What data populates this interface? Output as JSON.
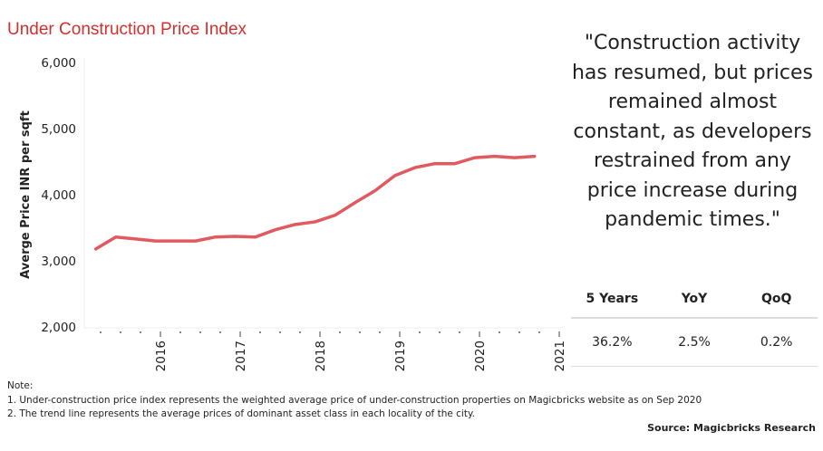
{
  "title": "Under Construction Price Index",
  "quote": "\"Construction activity has resumed, but prices remained almost constant, as developers restrained from any price increase during pandemic times.\"",
  "stats": {
    "headers": [
      "5 Years",
      "YoY",
      "QoQ"
    ],
    "values": [
      "36.2%",
      "2.5%",
      "0.2%"
    ]
  },
  "notes": {
    "heading": "Note:",
    "items": [
      "1. Under-construction price index represents the weighted average price of under-construction properties on Magicbricks website as on Sep 2020",
      "2. The trend line represents  the average prices of dominant asset class in each locality of the city."
    ]
  },
  "source": "Source: Magicbricks Research",
  "chart_data": {
    "type": "line",
    "title": "Under Construction Price Index",
    "xlabel": "",
    "ylabel": "Averge Price INR per sqft",
    "ylim": [
      2000,
      6000
    ],
    "yticks": [
      "2,000",
      "3,000",
      "4,000",
      "5,000",
      "6,000"
    ],
    "ytick_values": [
      2000,
      3000,
      4000,
      5000,
      6000
    ],
    "xticks": [
      "2016",
      "2017",
      "2018",
      "2019",
      "2020",
      "2021"
    ],
    "grid": false,
    "color": "#e05a5f",
    "x": [
      "2015 Q2",
      "2015 Q3",
      "2015 Q4",
      "2016 Q1",
      "2016 Q2",
      "2016 Q3",
      "2016 Q4",
      "2017 Q1",
      "2017 Q2",
      "2017 Q3",
      "2017 Q4",
      "2018 Q1",
      "2018 Q2",
      "2018 Q3",
      "2018 Q4",
      "2019 Q1",
      "2019 Q2",
      "2019 Q3",
      "2019 Q4",
      "2020 Q1",
      "2020 Q2",
      "2020 Q3",
      "2020 Q4"
    ],
    "values": [
      3180,
      3360,
      3330,
      3300,
      3300,
      3300,
      3360,
      3370,
      3360,
      3470,
      3550,
      3590,
      3690,
      3880,
      4060,
      4290,
      4410,
      4470,
      4470,
      4560,
      4580,
      4560,
      4580
    ]
  }
}
